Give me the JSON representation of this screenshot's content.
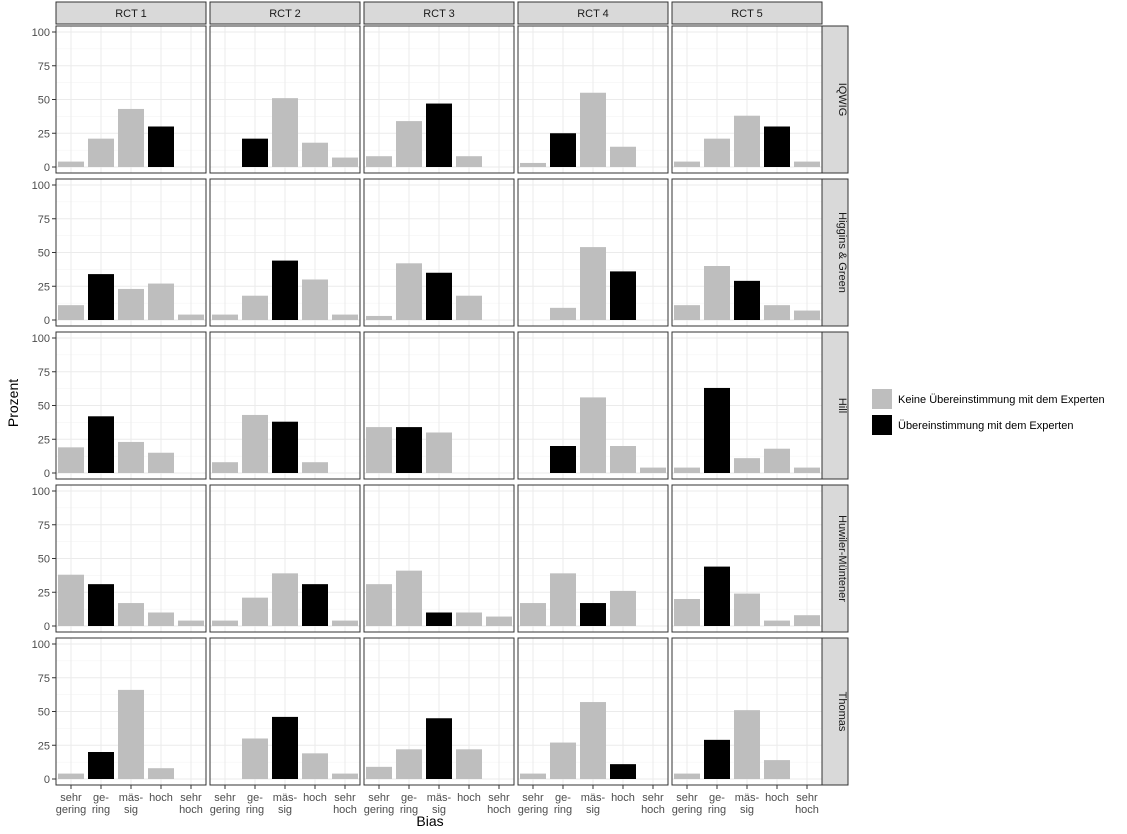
{
  "chart_data": {
    "type": "bar",
    "xlabel": "Bias",
    "ylabel": "Prozent",
    "ylim": [
      0,
      100
    ],
    "yticks": [
      "0",
      "25",
      "50",
      "75",
      "100"
    ],
    "grid": true,
    "legend_position": "right",
    "columns": [
      "RCT 1",
      "RCT 2",
      "RCT 3",
      "RCT 4",
      "RCT 5"
    ],
    "rows": [
      "IQWIG",
      "Higgins & Green",
      "Hill",
      "Huwiler-Müntener",
      "Thomas"
    ],
    "categories": [
      "sehr gering",
      "gering",
      "mässig",
      "hoch",
      "sehr hoch"
    ],
    "category_tick_lines": [
      [
        "sehr",
        "gering"
      ],
      [
        "ge-",
        "ring"
      ],
      [
        "mäs-",
        "sig"
      ],
      [
        "hoch"
      ],
      [
        "sehr",
        "hoch"
      ]
    ],
    "legend": [
      {
        "key": "no_match",
        "label": "Keine Übereinstimmung mit dem Experten",
        "color": "#bebebe"
      },
      {
        "key": "match",
        "label": "Übereinstimmung mit dem Experten",
        "color": "#000000"
      }
    ],
    "panels": [
      {
        "row": "IQWIG",
        "col": "RCT 1",
        "values": [
          4,
          21,
          43,
          30,
          0
        ],
        "match_index": 3
      },
      {
        "row": "IQWIG",
        "col": "RCT 2",
        "values": [
          0,
          21,
          51,
          18,
          7
        ],
        "match_index": 1
      },
      {
        "row": "IQWIG",
        "col": "RCT 3",
        "values": [
          8,
          34,
          47,
          8,
          0
        ],
        "match_index": 2
      },
      {
        "row": "IQWIG",
        "col": "RCT 4",
        "values": [
          3,
          25,
          55,
          15,
          0
        ],
        "match_index": 1
      },
      {
        "row": "IQWIG",
        "col": "RCT 5",
        "values": [
          4,
          21,
          38,
          30,
          4
        ],
        "match_index": 3
      },
      {
        "row": "Higgins & Green",
        "col": "RCT 1",
        "values": [
          11,
          34,
          23,
          27,
          4
        ],
        "match_index": 1
      },
      {
        "row": "Higgins & Green",
        "col": "RCT 2",
        "values": [
          4,
          18,
          44,
          30,
          4
        ],
        "match_index": 2
      },
      {
        "row": "Higgins & Green",
        "col": "RCT 3",
        "values": [
          3,
          42,
          35,
          18,
          0
        ],
        "match_index": 2
      },
      {
        "row": "Higgins & Green",
        "col": "RCT 4",
        "values": [
          0,
          9,
          54,
          36,
          0
        ],
        "match_index": 3
      },
      {
        "row": "Higgins & Green",
        "col": "RCT 5",
        "values": [
          11,
          40,
          29,
          11,
          7
        ],
        "match_index": 2
      },
      {
        "row": "Hill",
        "col": "RCT 1",
        "values": [
          19,
          42,
          23,
          15,
          0
        ],
        "match_index": 1
      },
      {
        "row": "Hill",
        "col": "RCT 2",
        "values": [
          8,
          43,
          38,
          8,
          0
        ],
        "match_index": 2
      },
      {
        "row": "Hill",
        "col": "RCT 3",
        "values": [
          34,
          34,
          30,
          0,
          0
        ],
        "match_index": 1
      },
      {
        "row": "Hill",
        "col": "RCT 4",
        "values": [
          0,
          20,
          56,
          20,
          4
        ],
        "match_index": 1
      },
      {
        "row": "Hill",
        "col": "RCT 5",
        "values": [
          4,
          63,
          11,
          18,
          4
        ],
        "match_index": 1
      },
      {
        "row": "Huwiler-Müntener",
        "col": "RCT 1",
        "values": [
          38,
          31,
          17,
          10,
          4
        ],
        "match_index": 1
      },
      {
        "row": "Huwiler-Müntener",
        "col": "RCT 2",
        "values": [
          4,
          21,
          39,
          31,
          4
        ],
        "match_index": 3
      },
      {
        "row": "Huwiler-Müntener",
        "col": "RCT 3",
        "values": [
          31,
          41,
          10,
          10,
          7
        ],
        "match_index": 2
      },
      {
        "row": "Huwiler-Müntener",
        "col": "RCT 4",
        "values": [
          17,
          39,
          17,
          26,
          0
        ],
        "match_index": 2
      },
      {
        "row": "Huwiler-Müntener",
        "col": "RCT 5",
        "values": [
          20,
          44,
          24,
          4,
          8
        ],
        "match_index": 1
      },
      {
        "row": "Thomas",
        "col": "RCT 1",
        "values": [
          4,
          20,
          66,
          8,
          0
        ],
        "match_index": 1
      },
      {
        "row": "Thomas",
        "col": "RCT 2",
        "values": [
          0,
          30,
          46,
          19,
          4
        ],
        "match_index": 2
      },
      {
        "row": "Thomas",
        "col": "RCT 3",
        "values": [
          9,
          22,
          45,
          22,
          0
        ],
        "match_index": 2
      },
      {
        "row": "Thomas",
        "col": "RCT 4",
        "values": [
          4,
          27,
          57,
          11,
          0
        ],
        "match_index": 3
      },
      {
        "row": "Thomas",
        "col": "RCT 5",
        "values": [
          4,
          29,
          51,
          14,
          0
        ],
        "match_index": 1
      }
    ]
  }
}
